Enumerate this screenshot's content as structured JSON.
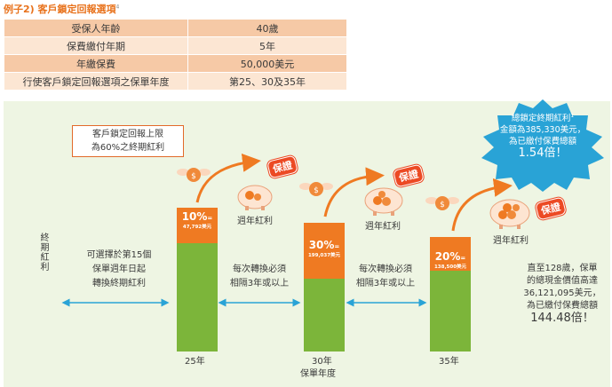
{
  "title": {
    "text": "例子2) 客戶鎖定回報選項",
    "note": "4"
  },
  "params": [
    {
      "label": "受保人年齡",
      "value": "40歲"
    },
    {
      "label": "保費繳付年期",
      "value": "5年"
    },
    {
      "label": "年繳保費",
      "value": "50,000美元"
    },
    {
      "label": "行使客戶鎖定回報選項之保單年度",
      "value": "第25、30及35年"
    }
  ],
  "diagram": {
    "note_line1": "客戶鎖定回報上限",
    "note_line2": "為60%之終期紅利",
    "y_axis_label": "終期紅利",
    "first_text": [
      "可選擇於第15個",
      "保單週年日起",
      "轉換終期紅利"
    ],
    "gap_text": [
      "每次轉換必須",
      "相隔3年或以上"
    ],
    "gap_text2": [
      "每次轉換必須",
      "相隔3年或以上"
    ],
    "bonus_label": "週年紅利",
    "stamp_label": "保證",
    "bars": [
      {
        "pct": "10%",
        "eq": "=",
        "amount": "47,792美元",
        "year": "25年"
      },
      {
        "pct": "30%",
        "eq": "=",
        "amount": "199,037美元",
        "year": "30年"
      },
      {
        "pct": "20%",
        "eq": "=",
        "amount": "138,500美元",
        "year": "35年"
      }
    ],
    "x_axis_label": "保單年度",
    "burst": {
      "line1": "總鎖定終期紅利",
      "line2": "金額為385,330美元，",
      "line3": "為已繳付保費總額",
      "multiple": "1.54倍！",
      "note": "1"
    },
    "final": {
      "line1": "直至128歲，保單",
      "line2": "的總現金價值高達",
      "line3": "36,121,095美元，",
      "line4": "為已繳付保費總額",
      "multiple": "144.48倍！"
    }
  },
  "colors": {
    "orange": "#ef7a22",
    "green": "#7cb53a",
    "red": "#ec4a24",
    "blue": "#29a3d6",
    "panel": "#eef5e3"
  }
}
